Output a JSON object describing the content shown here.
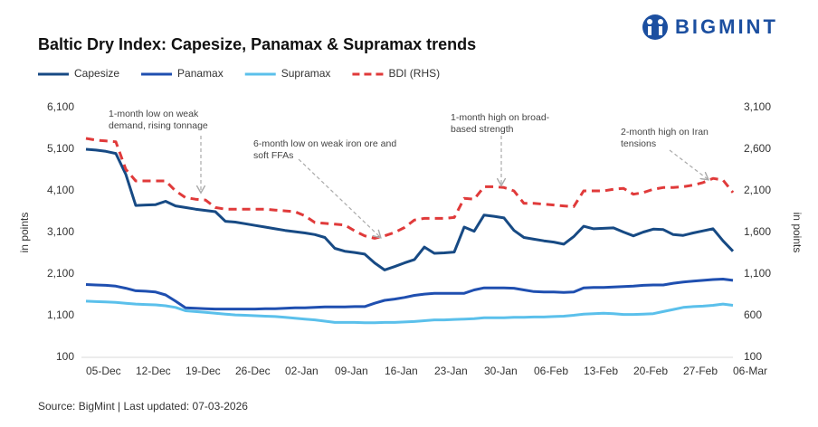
{
  "chart_data": {
    "type": "line",
    "brand": "BIGMINT",
    "title": "Baltic Dry Index: Capesize, Panamax & Supramax trends",
    "ylabel": "in points",
    "y2label": "in points",
    "source": "Source: BigMint | Last updated: 07-03-2026",
    "legend": "top",
    "grid": false,
    "categories": [
      "05-Dec",
      null,
      null,
      null,
      null,
      "12-Dec",
      null,
      null,
      null,
      null,
      "19-Dec",
      null,
      null,
      null,
      null,
      "26-Dec",
      null,
      null,
      null,
      null,
      "02-Jan",
      null,
      null,
      null,
      null,
      "09-Jan",
      null,
      null,
      null,
      null,
      "16-Jan",
      null,
      null,
      null,
      null,
      "23-Jan",
      null,
      null,
      null,
      null,
      "30-Jan",
      null,
      null,
      null,
      null,
      "06-Feb",
      null,
      null,
      null,
      null,
      "13-Feb",
      null,
      null,
      null,
      null,
      "20-Feb",
      null,
      null,
      null,
      null,
      "27-Feb",
      null,
      null,
      null,
      null,
      "06-Mar"
    ],
    "ylim": [
      100,
      6100
    ],
    "yticks": [
      100,
      {
        "value": 1100,
        "label": "1,100"
      },
      {
        "value": 2100,
        "label": "2,100"
      },
      {
        "value": 3100,
        "label": "3,100"
      },
      {
        "value": 4100,
        "label": "4,100"
      },
      {
        "value": 5100,
        "label": "5,100"
      },
      {
        "value": 6100,
        "label": "6,100"
      }
    ],
    "y2lim": [
      100,
      3100
    ],
    "y2ticks": [
      100,
      600,
      {
        "value": 1100,
        "label": "1,100"
      },
      {
        "value": 1600,
        "label": "1,600"
      },
      {
        "value": 2100,
        "label": "2,100"
      },
      {
        "value": 2600,
        "label": "2,600"
      },
      {
        "value": 3100,
        "label": "3,100"
      }
    ],
    "series": [
      {
        "name": "Capesize",
        "color": "#174a84",
        "style": "solid",
        "values": [
          5100,
          5080,
          5050,
          5000,
          4500,
          3750,
          3760,
          3770,
          3850,
          3740,
          3700,
          3660,
          3630,
          3600,
          3370,
          3350,
          3310,
          3270,
          3230,
          3190,
          3150,
          3120,
          3090,
          3050,
          2980,
          2720,
          2650,
          2620,
          2580,
          2370,
          2200,
          2280,
          2370,
          2450,
          2750,
          2600,
          2610,
          2630,
          3230,
          3130,
          3520,
          3490,
          3450,
          3150,
          2980,
          2940,
          2900,
          2870,
          2820,
          3000,
          3250,
          3190,
          3200,
          3210,
          3110,
          3020,
          3110,
          3180,
          3170,
          3050,
          3030,
          3090,
          3140,
          3190,
          2900,
          2650
        ]
      },
      {
        "name": "Panamax",
        "color": "#1f4fb0",
        "style": "solid",
        "values": [
          1850,
          1840,
          1830,
          1810,
          1760,
          1700,
          1690,
          1670,
          1600,
          1450,
          1290,
          1280,
          1270,
          1260,
          1260,
          1260,
          1260,
          1260,
          1270,
          1270,
          1280,
          1290,
          1290,
          1300,
          1310,
          1310,
          1310,
          1320,
          1320,
          1400,
          1470,
          1500,
          1540,
          1590,
          1620,
          1640,
          1640,
          1640,
          1640,
          1720,
          1770,
          1770,
          1770,
          1760,
          1720,
          1680,
          1670,
          1670,
          1660,
          1670,
          1770,
          1780,
          1780,
          1790,
          1800,
          1810,
          1830,
          1840,
          1840,
          1880,
          1910,
          1930,
          1950,
          1970,
          1980,
          1950
        ]
      },
      {
        "name": "Supramax",
        "color": "#5bc0eb",
        "style": "solid",
        "values": [
          1450,
          1440,
          1430,
          1420,
          1400,
          1380,
          1370,
          1360,
          1340,
          1300,
          1220,
          1200,
          1180,
          1160,
          1140,
          1120,
          1110,
          1100,
          1090,
          1080,
          1060,
          1040,
          1020,
          1000,
          970,
          940,
          940,
          940,
          930,
          930,
          940,
          940,
          950,
          960,
          980,
          1000,
          1000,
          1010,
          1020,
          1030,
          1050,
          1050,
          1050,
          1060,
          1060,
          1070,
          1070,
          1080,
          1090,
          1110,
          1140,
          1150,
          1160,
          1150,
          1130,
          1130,
          1140,
          1150,
          1200,
          1250,
          1300,
          1320,
          1330,
          1350,
          1380,
          1350
        ]
      },
      {
        "name": "BDI (RHS)",
        "color": "#e03a3a",
        "style": "dashed",
        "axis": "y2",
        "values": [
          2730,
          2710,
          2700,
          2690,
          2360,
          2220,
          2220,
          2220,
          2220,
          2100,
          2020,
          2000,
          1990,
          1900,
          1880,
          1880,
          1880,
          1880,
          1880,
          1870,
          1860,
          1850,
          1800,
          1720,
          1710,
          1700,
          1690,
          1620,
          1560,
          1530,
          1560,
          1600,
          1660,
          1750,
          1770,
          1770,
          1770,
          1780,
          2010,
          2000,
          2150,
          2150,
          2140,
          2100,
          1950,
          1950,
          1940,
          1930,
          1920,
          1910,
          2100,
          2100,
          2100,
          2120,
          2130,
          2060,
          2080,
          2120,
          2140,
          2140,
          2150,
          2170,
          2200,
          2250,
          2230,
          2080
        ]
      }
    ],
    "annotations": [
      {
        "lines": [
          "1-month low on weak",
          "demand, rising tonnage"
        ]
      },
      {
        "lines": [
          "6-month low on weak iron ore and",
          "soft FFAs"
        ]
      },
      {
        "lines": [
          "1-month high on broad-",
          "based strength"
        ]
      },
      {
        "lines": [
          "2-month high on Iran",
          "tensions"
        ]
      }
    ]
  }
}
